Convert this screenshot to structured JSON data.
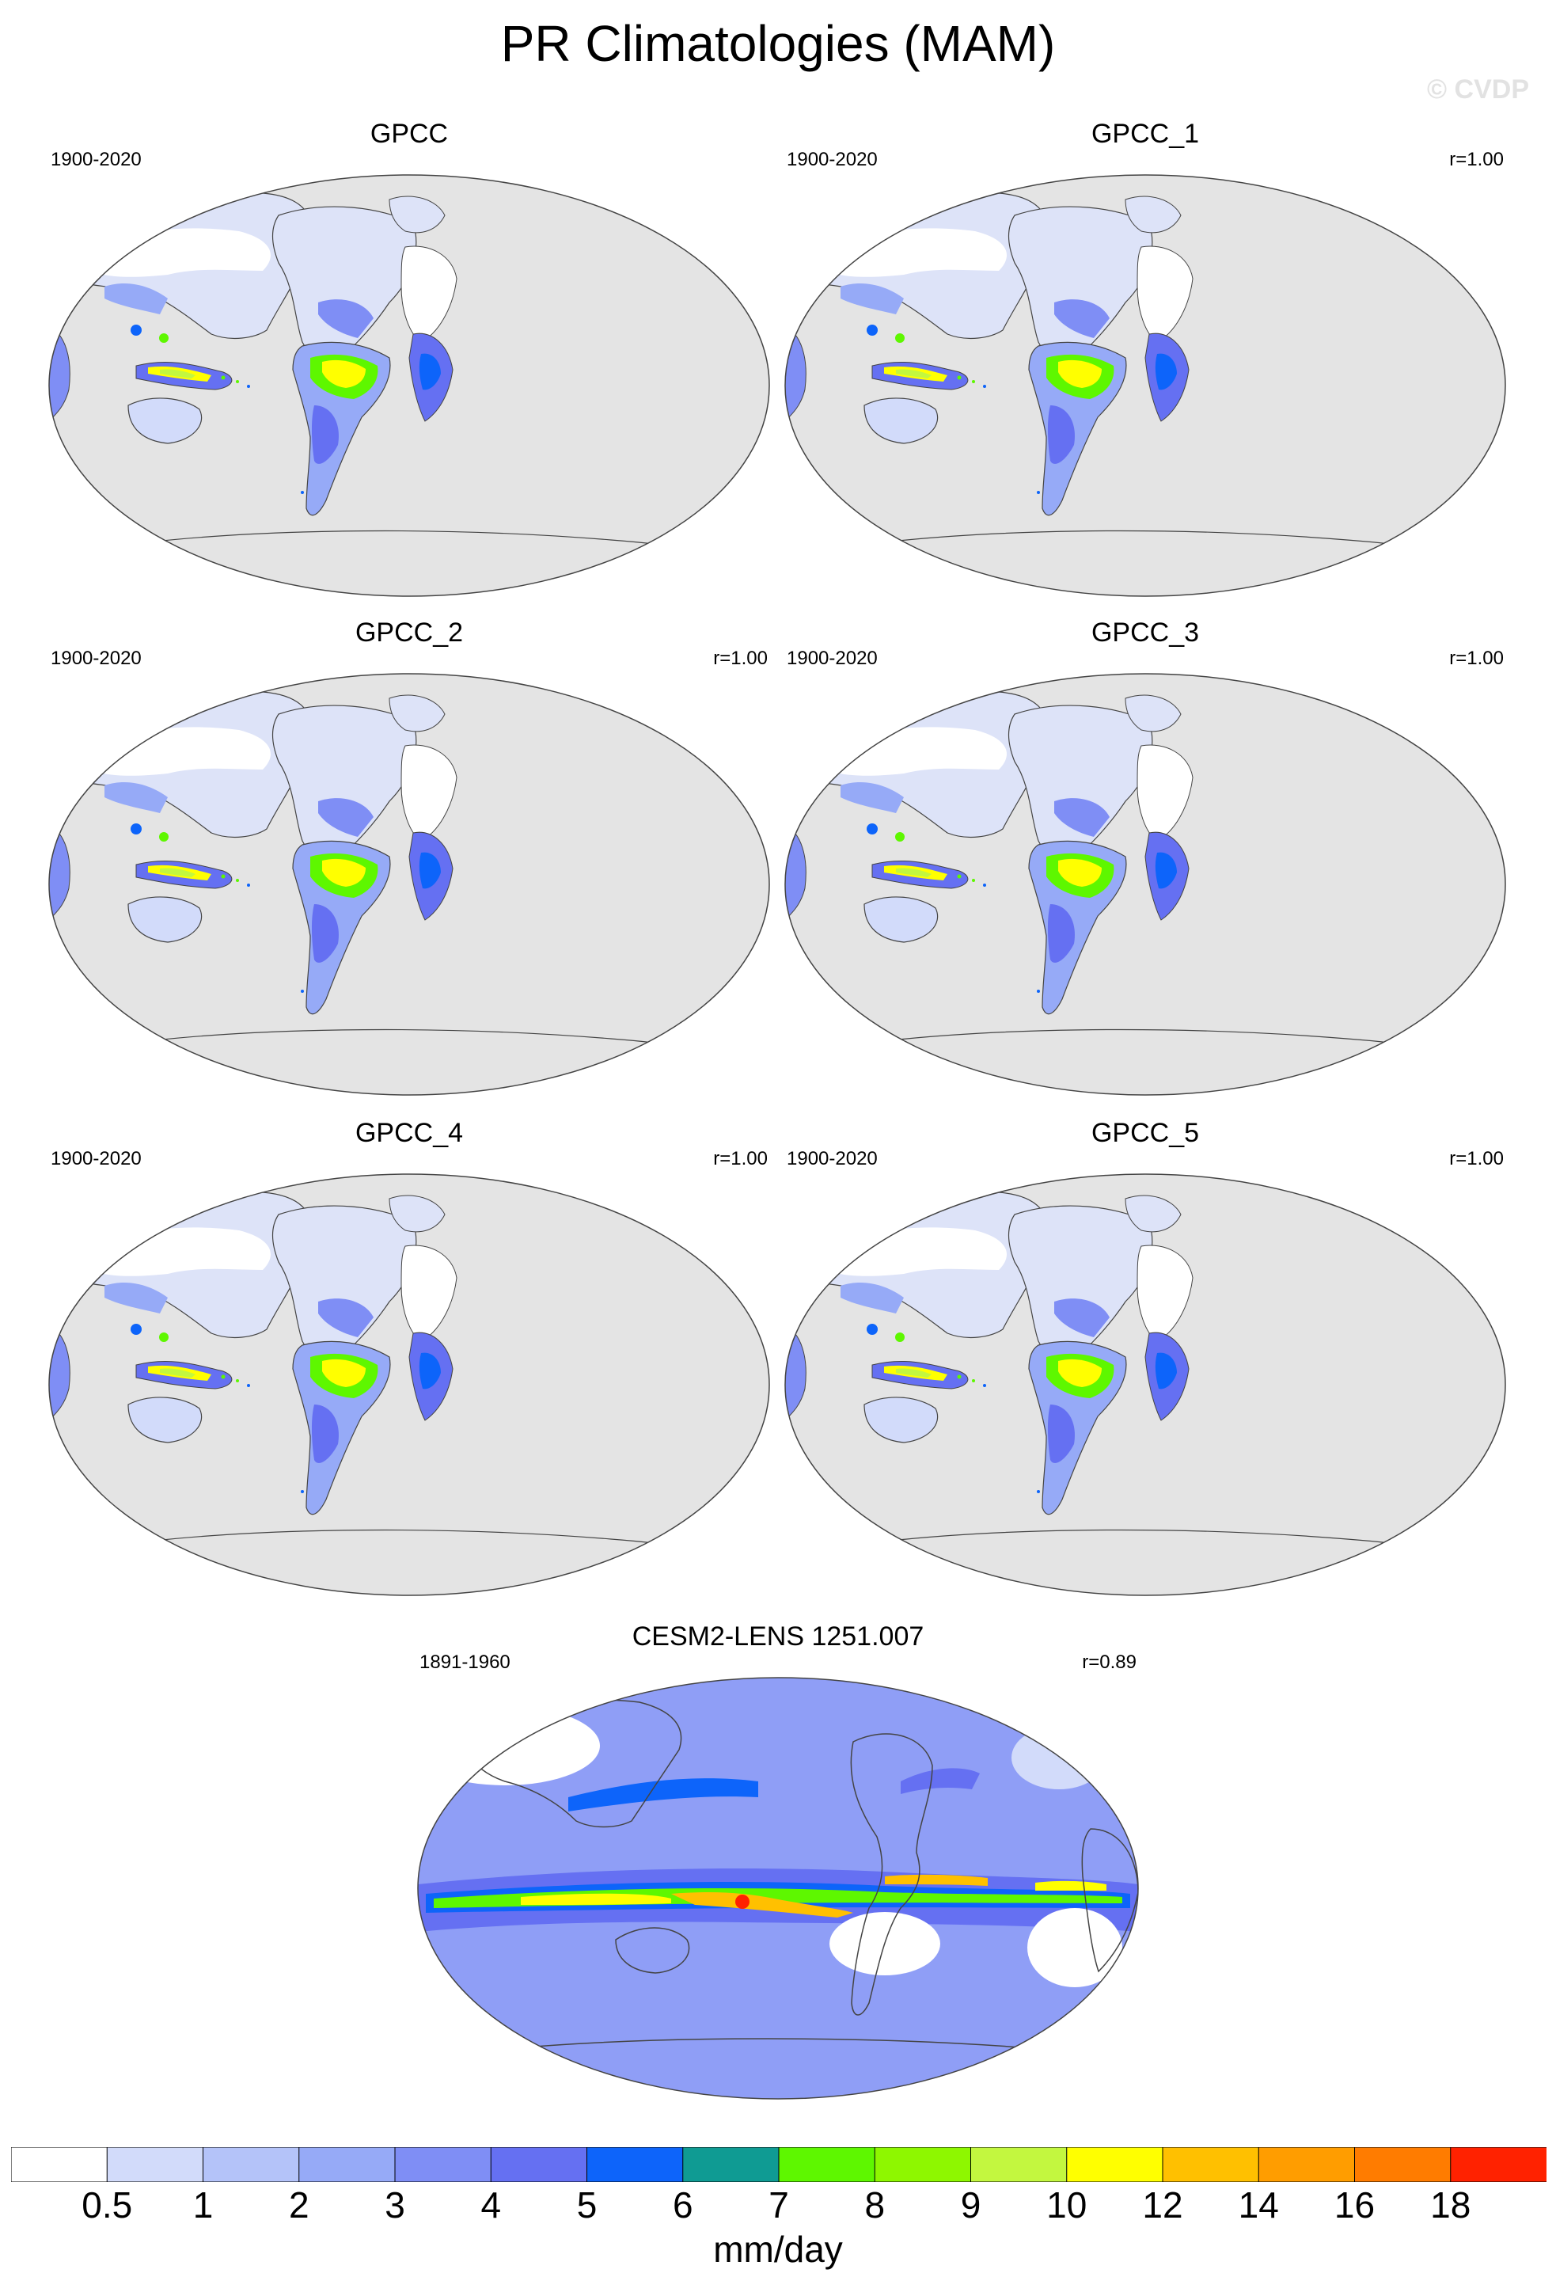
{
  "title": "PR Climatologies (MAM)",
  "watermark": "© CVDP",
  "colors": {
    "ocean": "#e4e4e4",
    "land_base": "#dde3f8",
    "coast": "#444444"
  },
  "panels": [
    {
      "name": "GPCC",
      "period": "1900-2020",
      "corr": ""
    },
    {
      "name": "GPCC_1",
      "period": "1900-2020",
      "corr": "r=1.00"
    },
    {
      "name": "GPCC_2",
      "period": "1900-2020",
      "corr": "r=1.00"
    },
    {
      "name": "GPCC_3",
      "period": "1900-2020",
      "corr": "r=1.00"
    },
    {
      "name": "GPCC_4",
      "period": "1900-2020",
      "corr": "r=1.00"
    },
    {
      "name": "GPCC_5",
      "period": "1900-2020",
      "corr": "r=1.00"
    },
    {
      "name": "CESM2-LENS 1251.007",
      "period": "1891-1960",
      "corr": "r=0.89"
    }
  ],
  "colorbar": {
    "labels": [
      "0.5",
      "1",
      "2",
      "3",
      "4",
      "5",
      "6",
      "7",
      "8",
      "9",
      "10",
      "12",
      "14",
      "16",
      "18"
    ],
    "colors": [
      "#ffffff",
      "#d2dbfa",
      "#b4c3f9",
      "#96aaf7",
      "#7f8ef5",
      "#6570f2",
      "#0d64fa",
      "#0f9b93",
      "#5ef700",
      "#8ef700",
      "#c3f73f",
      "#ffff00",
      "#ffc000",
      "#ff9d00",
      "#ff7c00",
      "#ff2200"
    ],
    "units": "mm/day"
  }
}
